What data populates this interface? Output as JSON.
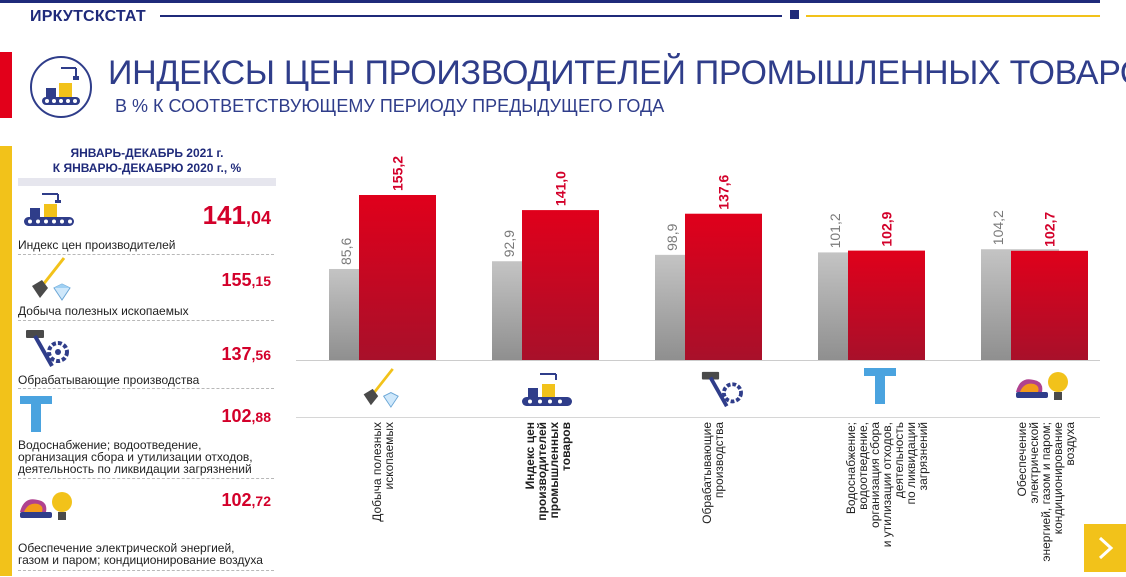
{
  "header": {
    "brand": "ИРКУТСКСТАТ",
    "title": "ИНДЕКСЫ ЦЕН ПРОИЗВОДИТЕЛЕЙ ПРОМЫШЛЕННЫХ ТОВАРОВ",
    "subtitle": "В % К СООТВЕТСТВУЮЩЕМУ ПЕРИОДУ ПРЕДЫДУЩЕГО ГОДА"
  },
  "summary": {
    "heading_line1": "ЯНВАРЬ-ДЕКАБРЬ 2021 г.",
    "heading_line2": "К ЯНВАРЮ-ДЕКАБРЮ 2020 г., %",
    "items": [
      {
        "int": "141",
        "frac": ",04",
        "label": "Индекс цен производителей",
        "icon": "conveyor-icon"
      },
      {
        "int": "155",
        "frac": ",15",
        "label": "Добыча полезных ископаемых",
        "icon": "shovel-diamond-icon"
      },
      {
        "int": "137",
        "frac": ",56",
        "label": "Обрабатывающие производства",
        "icon": "hammer-gear-icon"
      },
      {
        "int": "102",
        "frac": ",88",
        "label": "Водоснабжение; водоотведение,\nорганизация сбора и утилизации отходов,\nдеятельность по ликвидации загрязнений",
        "icon": "water-pipe-icon"
      },
      {
        "int": "102",
        "frac": ",72",
        "label": "Обеспечение электрической энергией,\nгазом и паром; кондиционирование воздуха",
        "icon": "energy-bulb-icon"
      }
    ]
  },
  "chart_data": {
    "type": "bar",
    "categories": [
      "Добыча полезных ископаемых",
      "Индекс цен производителей промышленных товаров",
      "Обрабатывающие производства",
      "Водоснабжение; водоотведение, организация сбора и утилизации отходов, деятельность по ликвидации загрязнений",
      "Обеспечение электрической энергией, газом и паром; кондиционирование воздуха"
    ],
    "category_lines": [
      [
        "Добыча полезных",
        "ископаемых"
      ],
      [
        "Индекс цен",
        "производителей",
        "промышленных",
        "товаров"
      ],
      [
        "Обрабатывающие",
        "производства"
      ],
      [
        "Водоснабжение;",
        "водоотведение,",
        "организация сбора",
        "и утилизации отходов,",
        "деятельность",
        "по ликвидации",
        "загрязнений"
      ],
      [
        "Обеспечение",
        "электрической",
        "энергией, газом и паром;",
        "кондиционирование",
        "воздуха"
      ]
    ],
    "category_icons": [
      "shovel-diamond-icon",
      "conveyor-icon",
      "hammer-gear-icon",
      "water-pipe-icon",
      "energy-bulb-icon"
    ],
    "series": [
      {
        "values": [
          85.6,
          92.9,
          98.9,
          101.2,
          104.2
        ],
        "labels": [
          "85,6",
          "92,9",
          "98,9",
          "101,2",
          "104,2"
        ],
        "color": "#a9a9a9"
      },
      {
        "values": [
          155.2,
          141.0,
          137.6,
          102.9,
          102.7
        ],
        "labels": [
          "155,2",
          "141,0",
          "137,6",
          "102,9",
          "102,7"
        ],
        "color": "#d3002a"
      }
    ],
    "title": "",
    "xlabel": "",
    "ylabel": "",
    "ylim": [
      0,
      160
    ],
    "grid": false,
    "legend": "none"
  },
  "colors": {
    "navy": "#1f2a7a",
    "accent_red": "#d3002a",
    "accent_yellow": "#f2c21a",
    "bar_grey": "#a9a9a9"
  }
}
